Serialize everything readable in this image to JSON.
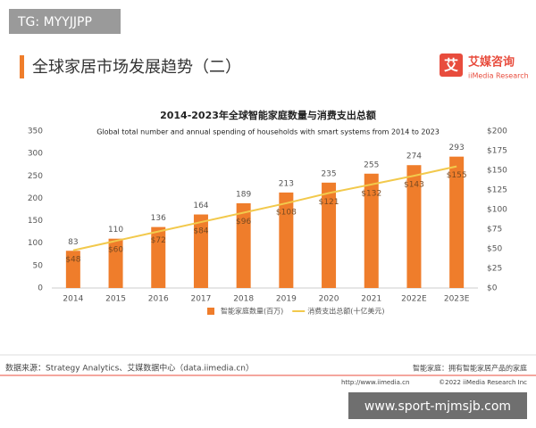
{
  "header": {
    "tag": "TG: MYYJJPP",
    "title": "全球家居市场发展趋势（二）",
    "brand": "艾媒咨询",
    "brand_en": "iiMedia Research"
  },
  "chart_data": {
    "type": "bar",
    "title": "2014-2023年全球智能家庭数量与消费支出总额",
    "subtitle": "Global total number and  annual spending of households with smart systems from 2014 to 2023",
    "categories": [
      "2014",
      "2015",
      "2016",
      "2017",
      "2018",
      "2019",
      "2020",
      "2021",
      "2022E",
      "2023E"
    ],
    "series": [
      {
        "name": "智能家庭数量(百万)",
        "type": "bar",
        "color": "#ef7d2b",
        "values": [
          83,
          110,
          136,
          164,
          189,
          213,
          235,
          255,
          274,
          293
        ]
      },
      {
        "name": "消费支出总额(十亿美元)",
        "type": "line",
        "axis": "y2",
        "color": "#f2c94c",
        "values": [
          48,
          60,
          72,
          84,
          96,
          108,
          121,
          132,
          143,
          155
        ],
        "value_labels": [
          "$48",
          "$60",
          "$72",
          "$84",
          "$96",
          "$108",
          "$121",
          "$132",
          "$143",
          "$155"
        ]
      }
    ],
    "ylim": [
      0,
      350
    ],
    "yticks": [
      0,
      50,
      100,
      150,
      200,
      250,
      300,
      350
    ],
    "y2lim": [
      0,
      200
    ],
    "y2ticks": [
      {
        "value": 0,
        "label": "$0"
      },
      {
        "value": 25,
        "label": "$25"
      },
      {
        "value": 50,
        "label": "$50"
      },
      {
        "value": 75,
        "label": "$75"
      },
      {
        "value": 100,
        "label": "$100"
      },
      {
        "value": 125,
        "label": "$125"
      },
      {
        "value": 150,
        "label": "$150"
      },
      {
        "value": 175,
        "label": "$175"
      },
      {
        "value": 200,
        "label": "$200"
      }
    ],
    "grid": false
  },
  "footer": {
    "source": "数据来源：Strategy Analytics、艾媒数据中心（data.iimedia.cn）",
    "note": "智能家庭：拥有智能家居产品的家庭",
    "url": "http://www.iimedia.cn",
    "copyright": "©2022  iiMedia Research  Inc",
    "watermark": "www.sport-mjmsjb.com"
  }
}
